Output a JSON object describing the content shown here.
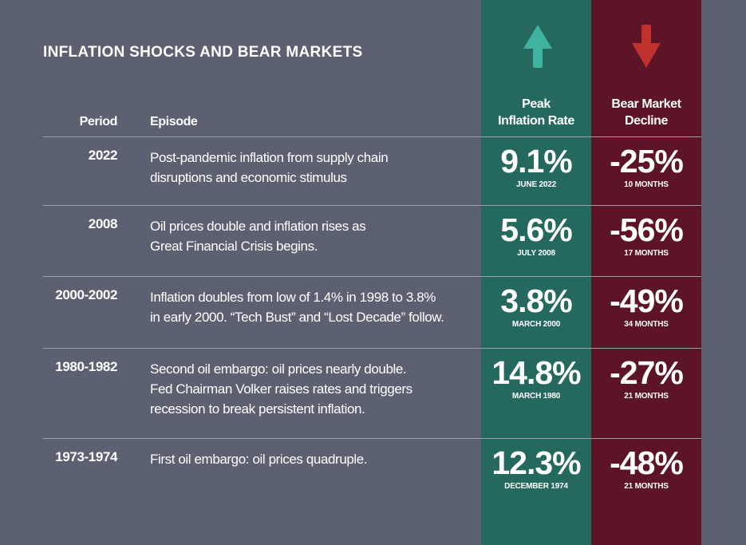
{
  "title": "INFLATION SHOCKS AND BEAR MARKETS",
  "colors": {
    "background": "#5b6170",
    "inflation_column": "#25695e",
    "decline_column": "#5e1427",
    "up_arrow": "#3fb39f",
    "down_arrow": "#c0302d"
  },
  "icons": {
    "inflation": "arrow-up-icon",
    "decline": "arrow-down-icon"
  },
  "headers": {
    "period": "Period",
    "episode": "Episode",
    "inflation_line1": "Peak",
    "inflation_line2": "Inflation Rate",
    "decline_line1": "Bear Market",
    "decline_line2": "Decline"
  },
  "chart_data": {
    "type": "table",
    "title": "INFLATION SHOCKS AND BEAR MARKETS",
    "columns": [
      "Period",
      "Episode",
      "Peak Inflation Rate",
      "Bear Market Decline"
    ],
    "rows": [
      {
        "period": "2022",
        "episode": [
          "Post-pandemic inflation from supply chain",
          "disruptions and economic stimulus"
        ],
        "inflation": "9.1%",
        "inflation_date": "JUNE 2022",
        "decline": "-25%",
        "duration": "10 MONTHS"
      },
      {
        "period": "2008",
        "episode": [
          "Oil prices double and inflation rises as",
          "Great Financial Crisis begins."
        ],
        "inflation": "5.6%",
        "inflation_date": "JULY 2008",
        "decline": "-56%",
        "duration": "17 MONTHS"
      },
      {
        "period": "2000-2002",
        "episode": [
          "Inflation doubles from low of 1.4% in 1998 to 3.8%",
          "in early 2000. “Tech Bust” and “Lost Decade” follow."
        ],
        "inflation": "3.8%",
        "inflation_date": "MARCH 2000",
        "decline": "-49%",
        "duration": "34 MONTHS"
      },
      {
        "period": "1980-1982",
        "episode": [
          "Second oil embargo: oil prices nearly double.",
          "Fed Chairman Volker raises rates and triggers",
          "recession to break persistent inflation."
        ],
        "inflation": "14.8%",
        "inflation_date": "MARCH 1980",
        "decline": "-27%",
        "duration": "21 MONTHS"
      },
      {
        "period": "1973-1974",
        "episode": [
          "First oil embargo: oil prices quadruple."
        ],
        "inflation": "12.3%",
        "inflation_date": "DECEMBER 1974",
        "decline": "-48%",
        "duration": "21 MONTHS"
      }
    ]
  }
}
